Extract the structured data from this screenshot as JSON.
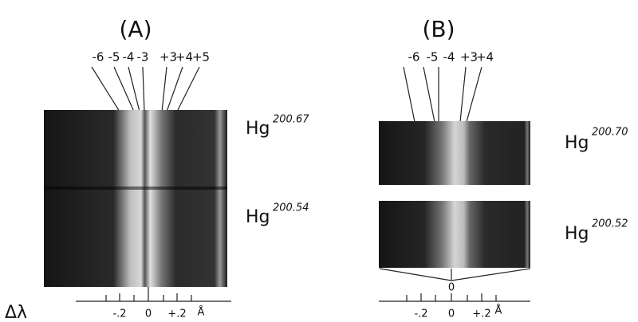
{
  "axis_label": "Δλ",
  "panels": [
    {
      "label": "(A)",
      "orders": [
        "-6",
        "-5",
        "-4",
        "-3",
        "+3",
        "+4",
        "+5"
      ],
      "spectra": [
        {
          "element": "Hg",
          "mass": "200.67"
        },
        {
          "element": "Hg",
          "mass": "200.54"
        }
      ],
      "scale": {
        "ticks": [
          "-.2",
          "0",
          "+.2"
        ],
        "unit": "Å"
      }
    },
    {
      "label": "(B)",
      "orders": [
        "-6",
        "-5",
        "-4",
        "+3",
        "+4"
      ],
      "spectra": [
        {
          "element": "Hg",
          "mass": "200.70"
        },
        {
          "element": "Hg",
          "mass": "200.52"
        }
      ],
      "center_label": "0",
      "scale": {
        "ticks": [
          "-.2",
          "0",
          "+.2"
        ],
        "unit": "Å"
      }
    }
  ]
}
